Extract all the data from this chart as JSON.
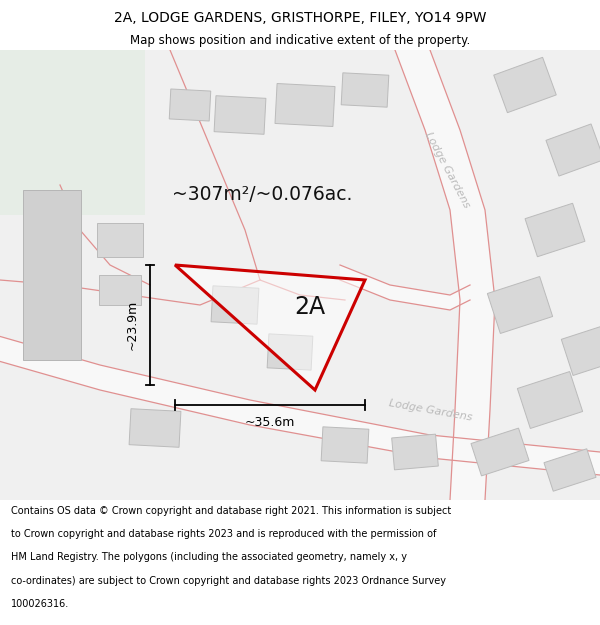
{
  "title_line1": "2A, LODGE GARDENS, GRISTHORPE, FILEY, YO14 9PW",
  "title_line2": "Map shows position and indicative extent of the property.",
  "area_label": "~307m²/~0.076ac.",
  "plot_label": "2A",
  "dim_width": "~35.6m",
  "dim_height": "~23.9m",
  "bg_map_color": "#f0f0f0",
  "bg_green_color": "#e6ede6",
  "road_fill_color": "#f7f7f7",
  "road_line_color": "#e8a0a0",
  "building_fill": "#d8d8d8",
  "building_edge": "#bbbbbb",
  "plot_edge_color": "#cc0000",
  "dim_color": "#000000",
  "text_color": "#000000",
  "road_label_color": "#bbbbbb",
  "footer_lines": [
    "Contains OS data © Crown copyright and database right 2021. This information is subject",
    "to Crown copyright and database rights 2023 and is reproduced with the permission of",
    "HM Land Registry. The polygons (including the associated geometry, namely x, y",
    "co-ordinates) are subject to Crown copyright and database rights 2023 Ordnance Survey",
    "100026316."
  ]
}
